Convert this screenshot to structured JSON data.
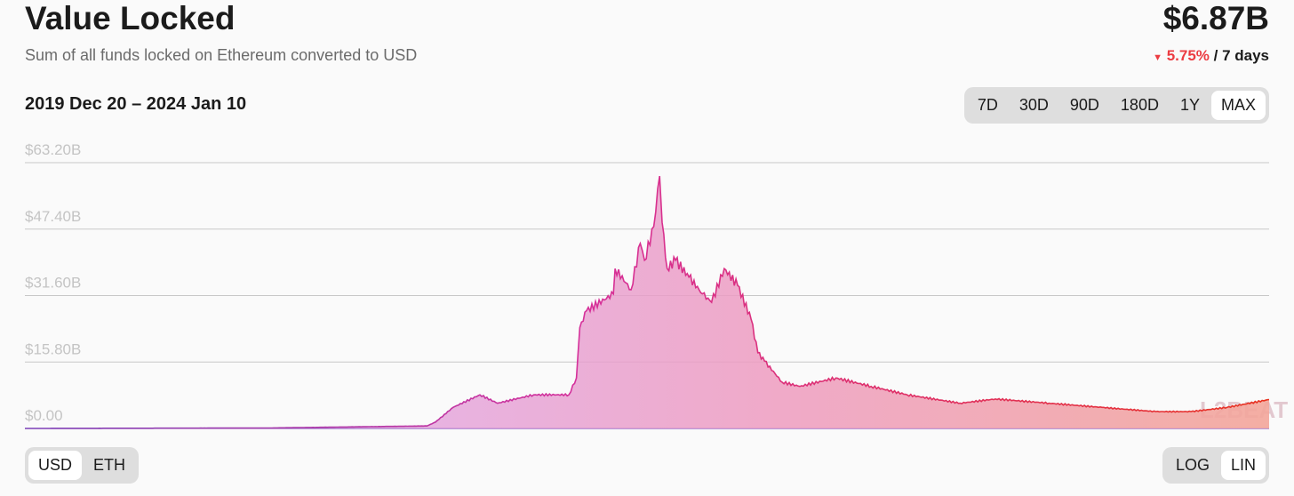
{
  "header": {
    "title": "Value Locked",
    "subtitle": "Sum of all funds locked on Ethereum converted to USD",
    "value": "$6.87B",
    "change": "5.75%",
    "change_period": "/ 7 days",
    "change_direction": "down",
    "range": "2019 Dec 20 – 2024 Jan 10"
  },
  "periods": [
    "7D",
    "30D",
    "90D",
    "180D",
    "1Y",
    "MAX"
  ],
  "selected_period": "MAX",
  "units": [
    "USD",
    "ETH"
  ],
  "selected_unit": "USD",
  "scales": [
    "LOG",
    "LIN"
  ],
  "selected_scale": "LIN",
  "watermark": "L2BEAT",
  "colors": {
    "negative": "#ec3c42",
    "line_start": "#7b3fb8",
    "line_mid": "#d6309a",
    "line_end": "#e8321f"
  },
  "chart_data": {
    "type": "area",
    "title": "",
    "xlabel": "",
    "ylabel": "",
    "ylim": [
      0,
      63.2
    ],
    "y_ticks": [
      "$0.00",
      "$15.80B",
      "$31.60B",
      "$47.40B",
      "$63.20B"
    ],
    "y_tick_values": [
      0,
      15.8,
      31.6,
      47.4,
      63.2
    ],
    "grid": true,
    "x_range": [
      "2019-12-20",
      "2024-01-10"
    ],
    "unit": "USD billions",
    "points": [
      [
        "2019-12-20",
        0
      ],
      [
        "2020-10-03",
        0.1
      ],
      [
        "2021-04-12",
        0.6
      ],
      [
        "2021-04-22",
        1.5
      ],
      [
        "2021-05-13",
        5
      ],
      [
        "2021-06-14",
        8
      ],
      [
        "2021-07-05",
        6
      ],
      [
        "2021-08-17",
        8
      ],
      [
        "2021-09-28",
        8
      ],
      [
        "2021-10-07",
        12
      ],
      [
        "2021-10-11",
        24
      ],
      [
        "2021-10-19",
        28
      ],
      [
        "2021-11-20",
        32
      ],
      [
        "2021-11-22",
        38
      ],
      [
        "2021-12-11",
        33
      ],
      [
        "2021-12-22",
        44
      ],
      [
        "2021-12-27",
        40
      ],
      [
        "2022-01-07",
        48
      ],
      [
        "2022-01-14",
        60
      ],
      [
        "2022-01-17",
        49
      ],
      [
        "2022-01-23",
        38
      ],
      [
        "2022-02-02",
        40
      ],
      [
        "2022-02-18",
        36
      ],
      [
        "2022-03-06",
        32
      ],
      [
        "2022-03-17",
        30
      ],
      [
        "2022-04-01",
        38
      ],
      [
        "2022-04-17",
        34
      ],
      [
        "2022-05-03",
        26
      ],
      [
        "2022-05-11",
        18
      ],
      [
        "2022-05-19",
        16
      ],
      [
        "2022-06-09",
        11
      ],
      [
        "2022-06-30",
        10
      ],
      [
        "2022-08-12",
        12
      ],
      [
        "2022-09-23",
        10
      ],
      [
        "2022-11-05",
        8
      ],
      [
        "2023-01-07",
        6
      ],
      [
        "2023-02-18",
        7
      ],
      [
        "2023-04-23",
        6
      ],
      [
        "2023-06-25",
        5
      ],
      [
        "2023-08-28",
        4
      ],
      [
        "2023-10-09",
        4
      ],
      [
        "2023-11-21",
        5
      ],
      [
        "2024-01-10",
        6.87
      ]
    ]
  }
}
